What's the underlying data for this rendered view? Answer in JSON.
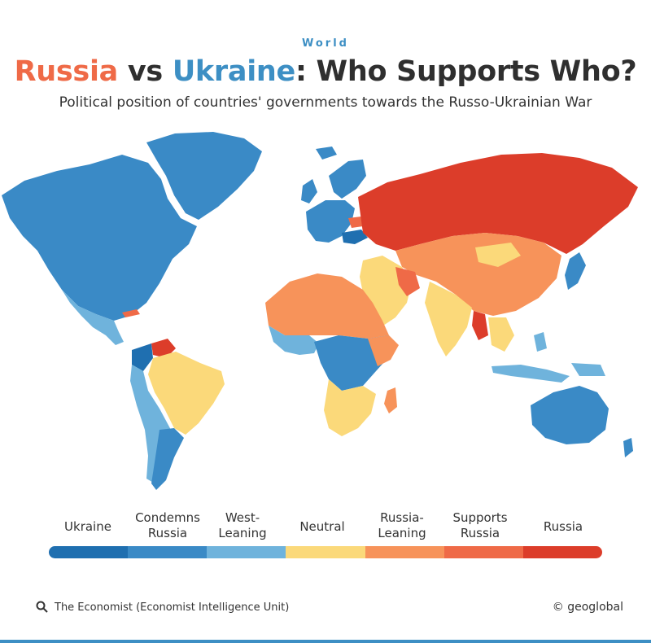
{
  "header": {
    "kicker": "World",
    "title_russia": "Russia",
    "title_vs": " vs ",
    "title_ukraine": "Ukraine",
    "title_rest": ": Who Supports Who?",
    "subtitle": "Political position of countries' governments towards the Russo-Ukrainian War"
  },
  "colors": {
    "ukraine": "#1f6fb0",
    "condemns_russia": "#3a8ac6",
    "west_leaning": "#6fb3dc",
    "neutral": "#fbd97a",
    "russia_leaning": "#f7935a",
    "supports_russia": "#ef6a47",
    "russia": "#dc3d2a",
    "russia_title": "#ef6a47",
    "ukraine_title": "#3d8fc4"
  },
  "legend": {
    "ukraine": "Ukraine",
    "condemns_russia": "Condemns Russia",
    "west_leaning": "West-Leaning",
    "neutral": "Neutral",
    "russia_leaning": "Russia-Leaning",
    "supports_russia": "Supports Russia",
    "russia": "Russia"
  },
  "footer": {
    "source_icon": "search-icon",
    "source": "The Economist (Economist Intelligence Unit)",
    "credit": "© geoglobal"
  }
}
